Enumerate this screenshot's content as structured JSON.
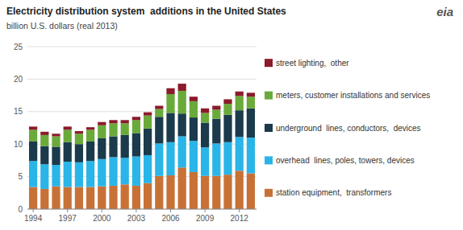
{
  "chart_data": {
    "type": "bar",
    "stacked": true,
    "title": "Electricity distribution system  additions in the United States",
    "subtitle": "billion U.S. dollars (real 2013)",
    "annotations": [
      "eia"
    ],
    "categories": [
      1994,
      null,
      null,
      1997,
      null,
      null,
      2000,
      null,
      null,
      2003,
      null,
      null,
      2006,
      null,
      null,
      2009,
      null,
      null,
      2012,
      null
    ],
    "series": [
      {
        "name": "station equipment,  transformers",
        "color": "#c87137",
        "values": [
          3.4,
          3.1,
          3.5,
          3.4,
          3.4,
          3.4,
          3.5,
          3.6,
          3.8,
          3.6,
          4.0,
          5.1,
          5.2,
          6.4,
          5.7,
          5.1,
          5.1,
          5.3,
          5.9,
          5.5
        ]
      },
      {
        "name": "overhead  lines, poles, towers, devices",
        "color": "#29b5e8",
        "values": [
          4.0,
          3.8,
          3.3,
          3.9,
          3.8,
          4.0,
          4.2,
          4.4,
          4.1,
          4.5,
          4.3,
          5.0,
          5.1,
          4.8,
          4.8,
          4.4,
          5.0,
          5.0,
          5.2,
          5.5
        ]
      },
      {
        "name": "underground  lines, conductors,  devices",
        "color": "#1b3a4b",
        "values": [
          3.0,
          2.8,
          2.8,
          3.0,
          2.8,
          3.0,
          3.2,
          3.2,
          3.5,
          3.6,
          4.1,
          4.1,
          4.5,
          3.5,
          3.6,
          3.8,
          3.8,
          4.2,
          4.1,
          4.5
        ]
      },
      {
        "name": "meters, customer installations and services",
        "color": "#6aaa3a",
        "values": [
          1.8,
          1.7,
          1.6,
          1.9,
          1.6,
          1.8,
          2.0,
          2.0,
          1.8,
          2.0,
          2.0,
          1.2,
          2.9,
          3.5,
          2.5,
          1.5,
          1.4,
          1.7,
          2.2,
          1.8
        ]
      },
      {
        "name": "street lighting,  other",
        "color": "#8b1a2a",
        "values": [
          0.5,
          0.5,
          0.4,
          0.5,
          0.4,
          0.4,
          0.5,
          0.5,
          0.5,
          0.5,
          0.5,
          0.5,
          0.9,
          1.1,
          0.7,
          0.7,
          0.6,
          0.7,
          0.7,
          0.6
        ]
      }
    ],
    "ylim": [
      0,
      25
    ],
    "yticks": [
      0,
      5,
      10,
      15,
      20,
      25
    ],
    "grid": true,
    "legend": "right"
  }
}
